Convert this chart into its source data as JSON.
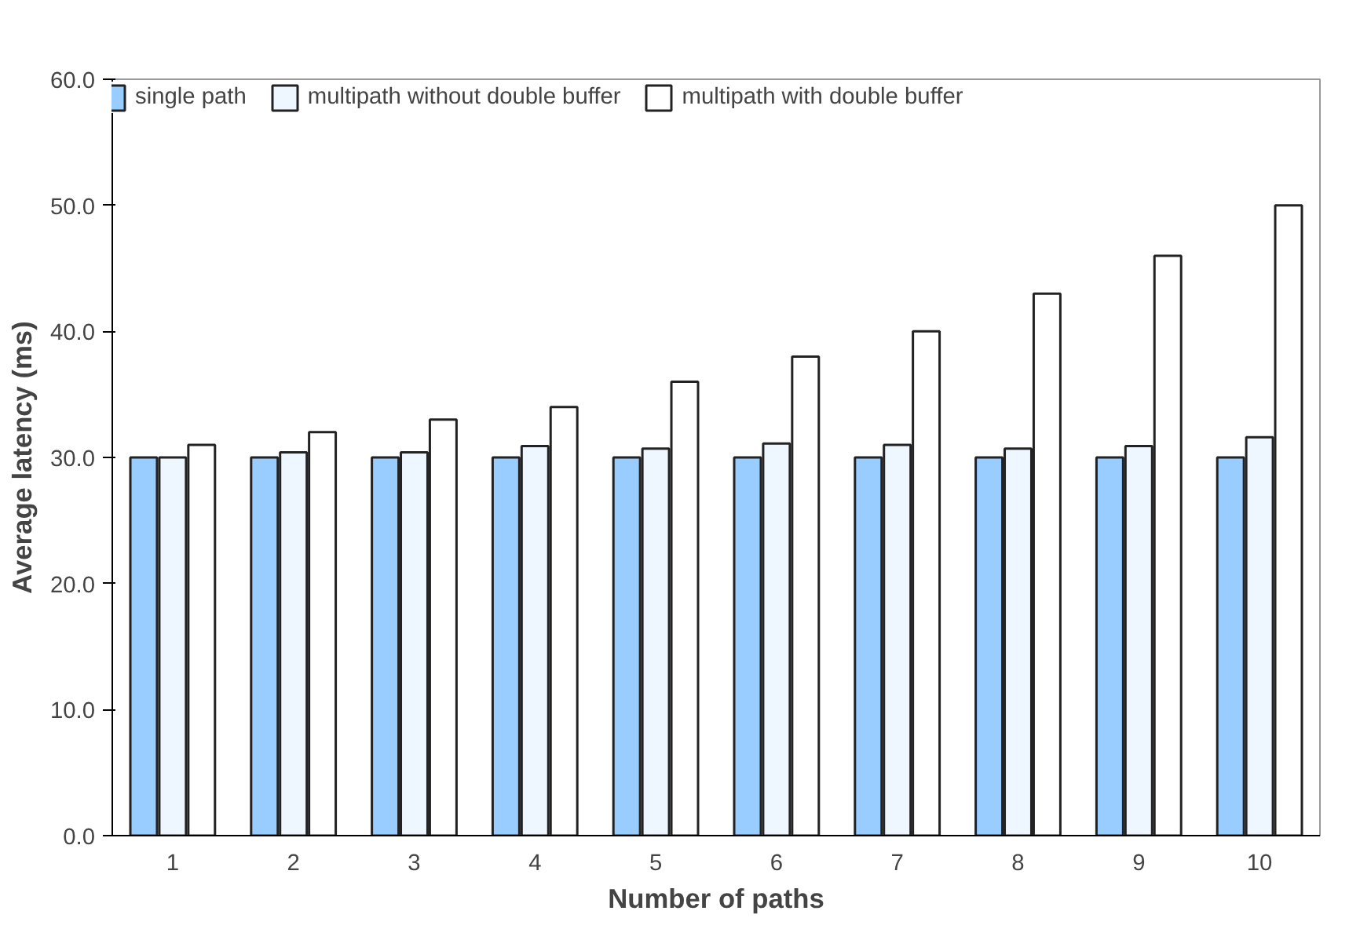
{
  "chart_data": {
    "type": "bar",
    "xlabel": "Number of paths",
    "ylabel": "Average latency (ms)",
    "categories": [
      "1",
      "2",
      "3",
      "4",
      "5",
      "6",
      "7",
      "8",
      "9",
      "10"
    ],
    "series": [
      {
        "name": "single path",
        "color": "#99ccff",
        "values": [
          30,
          30,
          30,
          30,
          30,
          30,
          30,
          30,
          30,
          30
        ]
      },
      {
        "name": "multipath without double buffer",
        "color": "#eef6ff",
        "values": [
          30.0,
          30.4,
          30.4,
          30.9,
          30.7,
          31.1,
          31.0,
          30.7,
          30.9,
          31.6
        ]
      },
      {
        "name": "multipath with double buffer",
        "color": "#ffffff",
        "values": [
          31,
          32,
          33,
          34,
          36,
          38,
          40,
          43,
          46,
          50
        ]
      }
    ],
    "ylim": [
      0,
      60
    ],
    "yticks": [
      {
        "value": 0,
        "label": "0.0"
      },
      {
        "value": 10,
        "label": "10.0"
      },
      {
        "value": 20,
        "label": "20.0"
      },
      {
        "value": 30,
        "label": "30.0"
      },
      {
        "value": 40,
        "label": "40.0"
      },
      {
        "value": 50,
        "label": "50.0"
      },
      {
        "value": 60,
        "label": "60.0"
      }
    ],
    "grid": false,
    "legend": "top"
  }
}
